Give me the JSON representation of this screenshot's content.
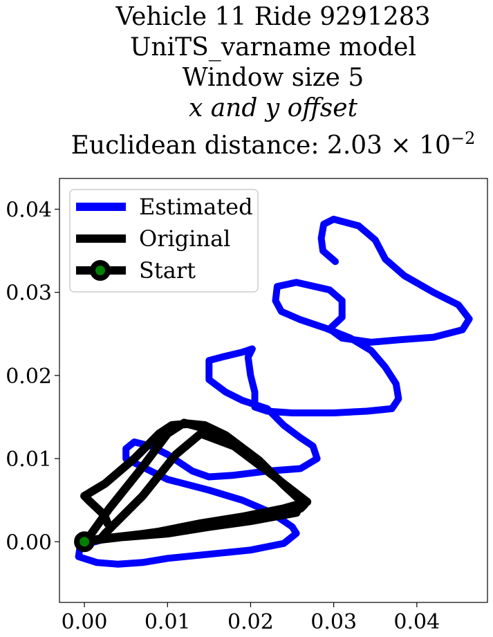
{
  "chart_data": {
    "type": "line",
    "title_lines": [
      "Vehicle 11 Ride 9291283",
      "UniTS_varname model",
      "Window size 5",
      "x and y offset",
      "Euclidean distance: 2.03 × 10"
    ],
    "title_exponent": "−2",
    "xlim": [
      -0.003,
      0.0485
    ],
    "ylim": [
      -0.0073,
      0.0437
    ],
    "x_ticks": [
      0.0,
      0.01,
      0.02,
      0.03,
      0.04
    ],
    "x_tick_labels": [
      "0.00",
      "0.01",
      "0.02",
      "0.03",
      "0.04"
    ],
    "y_ticks": [
      0.0,
      0.01,
      0.02,
      0.03,
      0.04
    ],
    "y_tick_labels": [
      "0.00",
      "0.01",
      "0.02",
      "0.03",
      "0.04"
    ],
    "grid": false,
    "legend_position": "upper-left",
    "legend": [
      "Estimated",
      "Original",
      "Start"
    ],
    "series": [
      {
        "name": "Estimated",
        "color": "#0000ff",
        "points": [
          [
            0.0302,
            0.0337
          ],
          [
            0.0287,
            0.035
          ],
          [
            0.0285,
            0.0365
          ],
          [
            0.0288,
            0.0382
          ],
          [
            0.03,
            0.0388
          ],
          [
            0.033,
            0.038
          ],
          [
            0.035,
            0.0363
          ],
          [
            0.0362,
            0.034
          ],
          [
            0.0385,
            0.032
          ],
          [
            0.042,
            0.03
          ],
          [
            0.045,
            0.0285
          ],
          [
            0.0463,
            0.0268
          ],
          [
            0.0455,
            0.0255
          ],
          [
            0.042,
            0.0246
          ],
          [
            0.038,
            0.0243
          ],
          [
            0.0345,
            0.024
          ],
          [
            0.031,
            0.0245
          ],
          [
            0.0295,
            0.0256
          ],
          [
            0.031,
            0.027
          ],
          [
            0.031,
            0.029
          ],
          [
            0.0295,
            0.0303
          ],
          [
            0.0255,
            0.0312
          ],
          [
            0.0232,
            0.0307
          ],
          [
            0.023,
            0.029
          ],
          [
            0.0237,
            0.0277
          ],
          [
            0.026,
            0.0267
          ],
          [
            0.029,
            0.0257
          ],
          [
            0.032,
            0.0245
          ],
          [
            0.0345,
            0.023
          ],
          [
            0.0362,
            0.021
          ],
          [
            0.0375,
            0.019
          ],
          [
            0.0378,
            0.0172
          ],
          [
            0.037,
            0.016
          ],
          [
            0.034,
            0.0157
          ],
          [
            0.03,
            0.0155
          ],
          [
            0.025,
            0.0155
          ],
          [
            0.022,
            0.0157
          ],
          [
            0.0205,
            0.0162
          ],
          [
            0.0205,
            0.018
          ],
          [
            0.02,
            0.02
          ],
          [
            0.0197,
            0.0222
          ],
          [
            0.0202,
            0.0232
          ],
          [
            0.019,
            0.0228
          ],
          [
            0.0165,
            0.0222
          ],
          [
            0.015,
            0.0218
          ],
          [
            0.015,
            0.0195
          ],
          [
            0.017,
            0.018
          ],
          [
            0.019,
            0.017
          ],
          [
            0.022,
            0.016
          ],
          [
            0.024,
            0.014
          ],
          [
            0.026,
            0.0125
          ],
          [
            0.0275,
            0.0115
          ],
          [
            0.028,
            0.01
          ],
          [
            0.026,
            0.0088
          ],
          [
            0.022,
            0.0085
          ],
          [
            0.018,
            0.008
          ],
          [
            0.015,
            0.0078
          ],
          [
            0.013,
            0.0085
          ],
          [
            0.01,
            0.0105
          ],
          [
            0.008,
            0.0115
          ],
          [
            0.006,
            0.012
          ],
          [
            0.005,
            0.0112
          ],
          [
            0.005,
            0.01
          ],
          [
            0.007,
            0.009
          ],
          [
            0.01,
            0.0075
          ],
          [
            0.015,
            0.0062
          ],
          [
            0.019,
            0.005
          ],
          [
            0.0225,
            0.0035
          ],
          [
            0.025,
            0.0018
          ],
          [
            0.0255,
            0.001
          ],
          [
            0.024,
            -0.0002
          ],
          [
            0.02,
            -0.001
          ],
          [
            0.015,
            -0.0015
          ],
          [
            0.01,
            -0.002
          ],
          [
            0.007,
            -0.0025
          ],
          [
            0.004,
            -0.0027
          ],
          [
            0.0015,
            -0.0025
          ],
          [
            -0.0007,
            -0.0018
          ],
          [
            -0.0005,
            -0.0005
          ],
          [
            0.002,
            0.0002
          ]
        ]
      },
      {
        "name": "Original",
        "color": "#000000",
        "points": [
          [
            0.0028,
            0.0022
          ],
          [
            0.0024,
            0.0032
          ],
          [
            0.0005,
            0.005
          ],
          [
            0.0,
            0.0055
          ],
          [
            0.0025,
            0.007
          ],
          [
            0.006,
            0.01
          ],
          [
            0.009,
            0.013
          ],
          [
            0.0105,
            0.014
          ],
          [
            0.0125,
            0.0142
          ],
          [
            0.0145,
            0.014
          ],
          [
            0.017,
            0.0128
          ],
          [
            0.021,
            0.0098
          ],
          [
            0.024,
            0.0068
          ],
          [
            0.0265,
            0.0045
          ],
          [
            0.026,
            0.004
          ],
          [
            0.023,
            0.0036
          ],
          [
            0.019,
            0.003
          ],
          [
            0.014,
            0.0022
          ],
          [
            0.009,
            0.0012
          ],
          [
            0.004,
            0.0005
          ],
          [
            0.0005,
            0.0001
          ],
          [
            0.0,
            0.0
          ],
          [
            0.0005,
            0.0005
          ],
          [
            0.003,
            0.004
          ],
          [
            0.007,
            0.009
          ],
          [
            0.01,
            0.013
          ],
          [
            0.012,
            0.0143
          ],
          [
            0.015,
            0.0135
          ],
          [
            0.019,
            0.011
          ],
          [
            0.023,
            0.0078
          ],
          [
            0.0262,
            0.005
          ],
          [
            0.0255,
            0.0035
          ],
          [
            0.02,
            0.0025
          ],
          [
            0.015,
            0.0018
          ],
          [
            0.01,
            0.001
          ],
          [
            0.005,
            0.0006
          ],
          [
            0.002,
            0.0004
          ],
          [
            0.0025,
            0.001
          ],
          [
            0.007,
            0.0055
          ],
          [
            0.011,
            0.0105
          ],
          [
            0.014,
            0.013
          ],
          [
            0.018,
            0.0115
          ],
          [
            0.022,
            0.0085
          ],
          [
            0.0268,
            0.0048
          ],
          [
            0.024,
            0.004
          ],
          [
            0.018,
            0.0028
          ],
          [
            0.012,
            0.0015
          ],
          [
            0.006,
            0.0008
          ],
          [
            0.0015,
            0.0003
          ]
        ]
      }
    ],
    "start_point": {
      "name": "Start",
      "x": 0.0,
      "y": 0.0,
      "fill": "#008000",
      "edge": "#000000"
    }
  }
}
